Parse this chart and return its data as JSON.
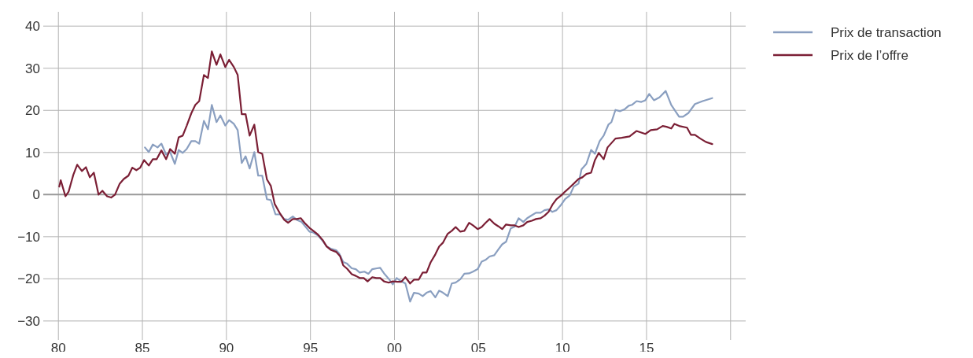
{
  "chart_data": {
    "type": "line",
    "xlim": [
      1979.1,
      2020.9
    ],
    "xticks": [
      {
        "value": 1980,
        "label": "80"
      },
      {
        "value": 1985,
        "label": "85"
      },
      {
        "value": 1990,
        "label": "90"
      },
      {
        "value": 1995,
        "label": "95"
      },
      {
        "value": 2000,
        "label": "00"
      },
      {
        "value": 2005,
        "label": "05"
      },
      {
        "value": 2010,
        "label": "10"
      },
      {
        "value": 2015,
        "label": "15"
      },
      {
        "value": 2020,
        "label": null
      }
    ],
    "ylim": [
      -34.5,
      43.4
    ],
    "yticks": [
      {
        "value": -30,
        "label": "−30"
      },
      {
        "value": -20,
        "label": "−20"
      },
      {
        "value": -10,
        "label": "−10"
      },
      0,
      10,
      20,
      30,
      40
    ],
    "grid": true,
    "legend": "top right",
    "line_style": "solid",
    "ref_lines": [
      {
        "axis": "y",
        "value": 0,
        "color": "#999999"
      }
    ],
    "series": [
      {
        "name": "Prix de transaction",
        "color": "#8a9fc0",
        "x": [
          1985.15,
          1985.38,
          1985.62,
          1985.9,
          1986.13,
          1986.41,
          1986.65,
          1986.93,
          1987.16,
          1987.4,
          1987.63,
          1987.91,
          1988.15,
          1988.38,
          1988.66,
          1988.9,
          1989.13,
          1989.41,
          1989.64,
          1989.93,
          1990.16,
          1990.44,
          1990.67,
          1990.91,
          1991.14,
          1991.38,
          1991.66,
          1991.89,
          1992.13,
          1992.41,
          1992.64,
          1992.92,
          1993.2,
          1993.44,
          1993.67,
          1993.95,
          1994.19,
          1994.47,
          1994.7,
          1994.94,
          1995.17,
          1995.45,
          1995.73,
          1995.96,
          1996.25,
          1996.53,
          1996.71,
          1996.95,
          1997.18,
          1997.46,
          1997.7,
          1997.93,
          1998.21,
          1998.45,
          1998.68,
          1998.96,
          1999.15,
          1999.38,
          1999.66,
          1999.9,
          2000.13,
          2000.37,
          2000.65,
          2000.93,
          2001.16,
          2001.44,
          2001.68,
          2001.91,
          2002.15,
          2002.43,
          2002.66,
          2002.89,
          2003.17,
          2003.41,
          2003.64,
          2003.92,
          2004.16,
          2004.44,
          2004.67,
          2004.95,
          2005.19,
          2005.42,
          2005.66,
          2005.94,
          2006.17,
          2006.41,
          2006.64,
          2006.92,
          2007.15,
          2007.39,
          2007.67,
          2007.9,
          2008.18,
          2008.42,
          2008.7,
          2008.93,
          2009.17,
          2009.4,
          2009.64,
          2009.92,
          2010.15,
          2010.43,
          2010.67,
          2010.95,
          2011.13,
          2011.42,
          2011.7,
          2011.93,
          2012.21,
          2012.45,
          2012.73,
          2012.91,
          2013.15,
          2013.43,
          2013.71,
          2013.94,
          2014.13,
          2014.41,
          2014.69,
          2014.93,
          2015.16,
          2015.44,
          2015.77,
          2016.14,
          2016.47,
          2016.94,
          2017.17,
          2017.5,
          2017.88,
          2018.34,
          2018.91
        ],
        "values": [
          11.2,
          10.1,
          11.9,
          11.2,
          12.1,
          9.5,
          10.1,
          7.3,
          10.6,
          9.9,
          10.8,
          12.7,
          12.7,
          12.1,
          17.5,
          15.5,
          21.3,
          17.2,
          18.8,
          16.4,
          17.7,
          16.8,
          15.3,
          7.5,
          9.1,
          6.2,
          10.1,
          4.5,
          4.5,
          -1.1,
          -1.3,
          -4.7,
          -4.7,
          -5.8,
          -6.0,
          -5.2,
          -6.0,
          -6.5,
          -7.6,
          -8.8,
          -9.0,
          -9.7,
          -11.0,
          -12.3,
          -12.9,
          -13.2,
          -14.0,
          -16.0,
          -16.4,
          -17.5,
          -17.7,
          -18.5,
          -18.3,
          -18.8,
          -17.7,
          -17.5,
          -17.4,
          -18.7,
          -20.0,
          -21.3,
          -19.8,
          -20.5,
          -21.1,
          -25.4,
          -23.3,
          -23.5,
          -24.1,
          -23.3,
          -22.9,
          -24.4,
          -22.8,
          -23.3,
          -24.1,
          -21.1,
          -20.9,
          -20.1,
          -18.8,
          -18.7,
          -18.3,
          -17.7,
          -15.9,
          -15.5,
          -14.7,
          -14.4,
          -13.1,
          -11.8,
          -11.2,
          -8.0,
          -7.6,
          -5.6,
          -6.5,
          -5.6,
          -4.9,
          -4.3,
          -4.3,
          -3.7,
          -3.5,
          -4.1,
          -3.7,
          -2.4,
          -1.1,
          -0.2,
          1.9,
          2.6,
          6.0,
          7.3,
          10.6,
          9.7,
          12.7,
          14.0,
          16.6,
          17.2,
          20.1,
          19.8,
          20.3,
          21.1,
          21.3,
          22.2,
          22.0,
          22.4,
          23.9,
          22.4,
          23.1,
          24.6,
          21.3,
          18.5,
          18.5,
          19.4,
          21.5,
          22.2,
          22.9
        ]
      },
      {
        "name": "Prix de l’offre",
        "color": "#7b1f35",
        "x": [
          1980.05,
          1980.14,
          1980.42,
          1980.61,
          1980.89,
          1981.12,
          1981.4,
          1981.64,
          1981.87,
          1982.11,
          1982.39,
          1982.62,
          1982.9,
          1983.14,
          1983.37,
          1983.65,
          1983.89,
          1984.17,
          1984.4,
          1984.64,
          1984.87,
          1985.1,
          1985.38,
          1985.62,
          1985.85,
          1986.13,
          1986.41,
          1986.65,
          1986.93,
          1987.16,
          1987.4,
          1987.63,
          1987.91,
          1988.15,
          1988.38,
          1988.66,
          1988.9,
          1989.13,
          1989.41,
          1989.64,
          1989.93,
          1990.16,
          1990.44,
          1990.67,
          1990.91,
          1991.14,
          1991.38,
          1991.66,
          1991.89,
          1992.13,
          1992.41,
          1992.64,
          1992.87,
          1993.16,
          1993.44,
          1993.67,
          1993.95,
          1994.19,
          1994.42,
          1994.65,
          1994.94,
          1995.17,
          1995.45,
          1995.73,
          1995.96,
          1996.2,
          1996.53,
          1996.76,
          1996.95,
          1997.18,
          1997.46,
          1997.7,
          1997.93,
          1998.17,
          1998.4,
          1998.68,
          1998.92,
          1999.15,
          1999.38,
          1999.66,
          1999.9,
          2000.18,
          2000.41,
          2000.65,
          2000.93,
          2001.16,
          2001.44,
          2001.68,
          2001.91,
          2002.15,
          2002.43,
          2002.66,
          2002.89,
          2003.17,
          2003.41,
          2003.64,
          2003.92,
          2004.16,
          2004.44,
          2004.67,
          2004.95,
          2005.19,
          2005.42,
          2005.66,
          2005.94,
          2006.17,
          2006.41,
          2006.64,
          2006.92,
          2007.15,
          2007.39,
          2007.67,
          2007.9,
          2008.18,
          2008.42,
          2008.7,
          2008.93,
          2009.17,
          2009.4,
          2009.64,
          2009.92,
          2010.15,
          2010.43,
          2010.67,
          2010.95,
          2011.18,
          2011.42,
          2011.7,
          2011.93,
          2012.16,
          2012.45,
          2012.68,
          2013.15,
          2013.52,
          2013.99,
          2014.41,
          2014.93,
          2015.25,
          2015.63,
          2015.96,
          2016.19,
          2016.47,
          2016.66,
          2016.94,
          2017.41,
          2017.64,
          2017.88,
          2018.2,
          2018.53,
          2018.91
        ],
        "values": [
          1.9,
          3.4,
          -0.4,
          0.7,
          4.7,
          7.1,
          5.6,
          6.5,
          4.1,
          5.2,
          0.0,
          0.9,
          -0.4,
          -0.7,
          0.0,
          2.6,
          3.7,
          4.5,
          6.4,
          5.8,
          6.4,
          8.2,
          6.9,
          8.4,
          8.4,
          10.5,
          8.4,
          10.8,
          9.7,
          13.6,
          14.0,
          16.3,
          19.3,
          21.3,
          22.2,
          28.4,
          27.7,
          34.0,
          30.8,
          33.3,
          30.3,
          32.0,
          30.3,
          28.4,
          19.1,
          19.1,
          14.0,
          16.6,
          10.1,
          9.7,
          3.6,
          2.1,
          -2.2,
          -4.3,
          -6.0,
          -6.7,
          -5.8,
          -5.8,
          -5.6,
          -6.7,
          -7.9,
          -8.6,
          -9.5,
          -10.8,
          -12.3,
          -13.1,
          -13.6,
          -14.6,
          -16.8,
          -17.6,
          -18.9,
          -19.3,
          -19.8,
          -19.8,
          -20.6,
          -19.6,
          -19.8,
          -19.8,
          -20.6,
          -20.9,
          -20.6,
          -20.7,
          -20.7,
          -19.6,
          -21.1,
          -20.2,
          -20.2,
          -18.5,
          -18.5,
          -16.1,
          -14.2,
          -12.3,
          -11.4,
          -9.3,
          -8.6,
          -7.7,
          -8.8,
          -8.6,
          -6.7,
          -7.3,
          -8.2,
          -7.7,
          -6.7,
          -5.8,
          -6.9,
          -7.5,
          -8.2,
          -7.1,
          -7.3,
          -7.3,
          -7.7,
          -7.3,
          -6.5,
          -6.2,
          -5.8,
          -5.6,
          -5.0,
          -4.1,
          -2.4,
          -1.1,
          -0.2,
          0.7,
          1.7,
          2.6,
          3.7,
          4.1,
          4.9,
          5.2,
          8.2,
          9.9,
          8.4,
          11.2,
          13.3,
          13.5,
          13.8,
          15.1,
          14.4,
          15.3,
          15.5,
          16.3,
          16.1,
          15.7,
          16.8,
          16.3,
          15.9,
          14.2,
          14.2,
          13.3,
          12.5,
          12.0
        ]
      }
    ]
  }
}
